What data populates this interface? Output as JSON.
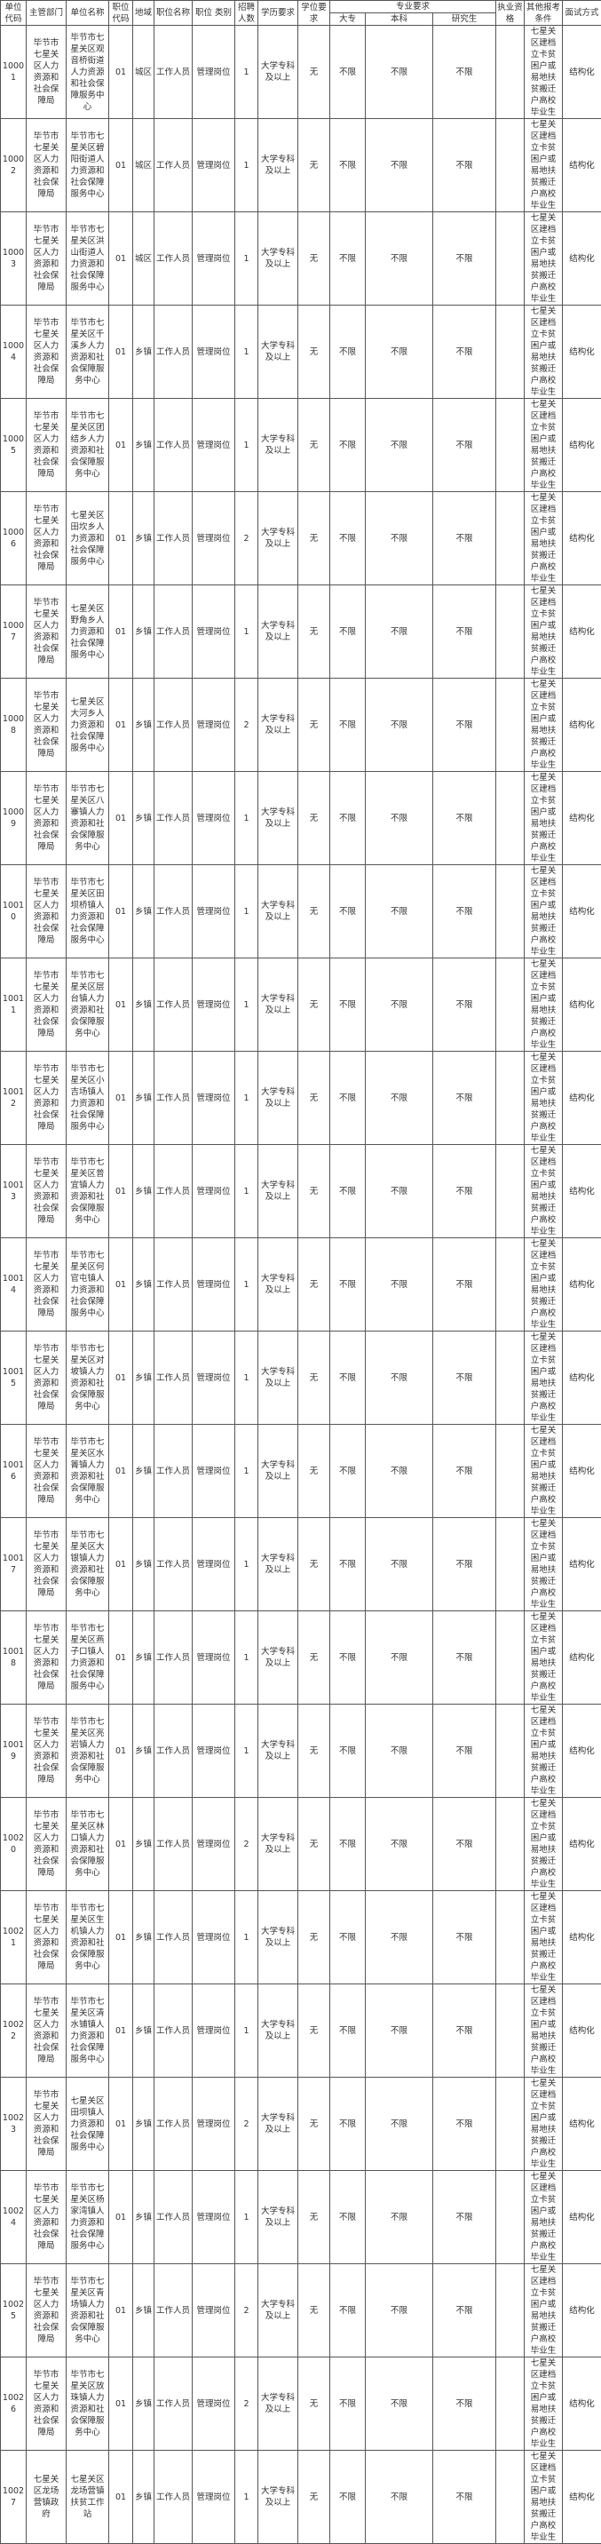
{
  "header": {
    "unit_code": "单位代码",
    "dept": "主管部门",
    "unit_name": "单位名称",
    "post_code": "职位代码",
    "region": "地域",
    "post_name": "职位名称",
    "post_type": "职位 类别",
    "count": "招聘人数",
    "education": "学历要求",
    "degree": "学位要求",
    "major_group": "专业要求",
    "major_junior": "大专",
    "major_bachelor": "本科",
    "major_graduate": "研究生",
    "license": "执业资格",
    "other": "其他报考条件",
    "interview": "面试方式"
  },
  "rows": [
    {
      "code": "10001",
      "dept": "毕节市七星关区人力资源和社会保障局",
      "unit": "毕节市七星关区观音桥街道人力资源和社会保障服务中心",
      "post": "01",
      "region": "城区",
      "name": "工作人员",
      "type": "管理岗位",
      "count": "1",
      "edu": "大学专科及以上",
      "degree": "无",
      "junior": "不限",
      "bachelor": "不限",
      "graduate": "不限",
      "license": "",
      "other": "七星关区建档立卡贫困户或易地扶贫搬迁户高校毕业生",
      "interview": "结构化"
    },
    {
      "code": "10002",
      "dept": "毕节市七星关区人力资源和社会保障局",
      "unit": "毕节市七星关区碧阳街道人力资源和社会保障服务中心",
      "post": "01",
      "region": "城区",
      "name": "工作人员",
      "type": "管理岗位",
      "count": "1",
      "edu": "大学专科及以上",
      "degree": "无",
      "junior": "不限",
      "bachelor": "不限",
      "graduate": "不限",
      "license": "",
      "other": "七星关区建档立卡贫困户或易地扶贫搬迁户高校毕业生",
      "interview": "结构化"
    },
    {
      "code": "10003",
      "dept": "毕节市七星关区人力资源和社会保障局",
      "unit": "毕节市七星关区洪山街道人力资源和社会保障服务中心",
      "post": "01",
      "region": "城区",
      "name": "工作人员",
      "type": "管理岗位",
      "count": "1",
      "edu": "大学专科及以上",
      "degree": "无",
      "junior": "不限",
      "bachelor": "不限",
      "graduate": "不限",
      "license": "",
      "other": "七星关区建档立卡贫困户或易地扶贫搬迁户高校毕业生",
      "interview": "结构化"
    },
    {
      "code": "10004",
      "dept": "毕节市七星关区人力资源和社会保障局",
      "unit": "毕节市七星关区千溪乡人力资源和社会保障服务中心",
      "post": "01",
      "region": "乡镇",
      "name": "工作人员",
      "type": "管理岗位",
      "count": "1",
      "edu": "大学专科及以上",
      "degree": "无",
      "junior": "不限",
      "bachelor": "不限",
      "graduate": "不限",
      "license": "",
      "other": "七星关区建档立卡贫困户或易地扶贫搬迁户高校毕业生",
      "interview": "结构化"
    },
    {
      "code": "10005",
      "dept": "毕节市七星关区人力资源和社会保障局",
      "unit": "毕节市七星关区团结乡人力资源和社会保障服务中心",
      "post": "01",
      "region": "乡镇",
      "name": "工作人员",
      "type": "管理岗位",
      "count": "1",
      "edu": "大学专科及以上",
      "degree": "无",
      "junior": "不限",
      "bachelor": "不限",
      "graduate": "不限",
      "license": "",
      "other": "七星关区建档立卡贫困户或易地扶贫搬迁户高校毕业生",
      "interview": "结构化"
    },
    {
      "code": "10006",
      "dept": "毕节市七星关区人力资源和社会保障局",
      "unit": "七星关区田坎乡人力资源和社会保障服务中心",
      "post": "01",
      "region": "乡镇",
      "name": "工作人员",
      "type": "管理岗位",
      "count": "2",
      "edu": "大学专科及以上",
      "degree": "无",
      "junior": "不限",
      "bachelor": "不限",
      "graduate": "不限",
      "license": "",
      "other": "七星关区建档立卡贫困户或易地扶贫搬迁户高校毕业生",
      "interview": "结构化"
    },
    {
      "code": "10007",
      "dept": "毕节市七星关区人力资源和社会保障局",
      "unit": "七星关区野角乡人力资源和社会保障服务中心",
      "post": "01",
      "region": "乡镇",
      "name": "工作人员",
      "type": "管理岗位",
      "count": "1",
      "edu": "大学专科及以上",
      "degree": "无",
      "junior": "不限",
      "bachelor": "不限",
      "graduate": "不限",
      "license": "",
      "other": "七星关区建档立卡贫困户或易地扶贫搬迁户高校毕业生",
      "interview": "结构化"
    },
    {
      "code": "10008",
      "dept": "毕节市七星关区人力资源和社会保障局",
      "unit": "七星关区大河乡人力资源和社会保障服务中心",
      "post": "01",
      "region": "乡镇",
      "name": "工作人员",
      "type": "管理岗位",
      "count": "2",
      "edu": "大学专科及以上",
      "degree": "无",
      "junior": "不限",
      "bachelor": "不限",
      "graduate": "不限",
      "license": "",
      "other": "七星关区建档立卡贫困户或易地扶贫搬迁户高校毕业生",
      "interview": "结构化"
    },
    {
      "code": "10009",
      "dept": "毕节市七星关区人力资源和社会保障局",
      "unit": "毕节市七星关区八寨镇人力资源和社会保障服务中心",
      "post": "01",
      "region": "乡镇",
      "name": "工作人员",
      "type": "管理岗位",
      "count": "1",
      "edu": "大学专科及以上",
      "degree": "无",
      "junior": "不限",
      "bachelor": "不限",
      "graduate": "不限",
      "license": "",
      "other": "七星关区建档立卡贫困户或易地扶贫搬迁户高校毕业生",
      "interview": "结构化"
    },
    {
      "code": "10010",
      "dept": "毕节市七星关区人力资源和社会保障局",
      "unit": "毕节市七星关区田坝桥镇人力资源和社会保障服务中心",
      "post": "01",
      "region": "乡镇",
      "name": "工作人员",
      "type": "管理岗位",
      "count": "1",
      "edu": "大学专科及以上",
      "degree": "无",
      "junior": "不限",
      "bachelor": "不限",
      "graduate": "不限",
      "license": "",
      "other": "七星关区建档立卡贫困户或易地扶贫搬迁户高校毕业生",
      "interview": "结构化"
    },
    {
      "code": "10011",
      "dept": "毕节市七星关区人力资源和社会保障局",
      "unit": "毕节市七星关区层台镇人力资源和社会保障服务中心",
      "post": "01",
      "region": "乡镇",
      "name": "工作人员",
      "type": "管理岗位",
      "count": "1",
      "edu": "大学专科及以上",
      "degree": "无",
      "junior": "不限",
      "bachelor": "不限",
      "graduate": "不限",
      "license": "",
      "other": "七星关区建档立卡贫困户或易地扶贫搬迁户高校毕业生",
      "interview": "结构化"
    },
    {
      "code": "10012",
      "dept": "毕节市七星关区人力资源和社会保障局",
      "unit": "毕节市七星关区小吉场镇人力资源和社会保障服务中心",
      "post": "01",
      "region": "乡镇",
      "name": "工作人员",
      "type": "管理岗位",
      "count": "1",
      "edu": "大学专科及以上",
      "degree": "无",
      "junior": "不限",
      "bachelor": "不限",
      "graduate": "不限",
      "license": "",
      "other": "七星关区建档立卡贫困户或易地扶贫搬迁户高校毕业生",
      "interview": "结构化"
    },
    {
      "code": "10013",
      "dept": "毕节市七星关区人力资源和社会保障局",
      "unit": "毕节市七星关区普宜镇人力资源和社会保障服务中心",
      "post": "01",
      "region": "乡镇",
      "name": "工作人员",
      "type": "管理岗位",
      "count": "1",
      "edu": "大学专科及以上",
      "degree": "无",
      "junior": "不限",
      "bachelor": "不限",
      "graduate": "不限",
      "license": "",
      "other": "七星关区建档立卡贫困户或易地扶贫搬迁户高校毕业生",
      "interview": "结构化"
    },
    {
      "code": "10014",
      "dept": "毕节市七星关区人力资源和社会保障局",
      "unit": "毕节市七星关区何官屯镇人力资源和社会保障服务中心",
      "post": "01",
      "region": "乡镇",
      "name": "工作人员",
      "type": "管理岗位",
      "count": "1",
      "edu": "大学专科及以上",
      "degree": "无",
      "junior": "不限",
      "bachelor": "不限",
      "graduate": "不限",
      "license": "",
      "other": "七星关区建档立卡贫困户或易地扶贫搬迁户高校毕业生",
      "interview": "结构化"
    },
    {
      "code": "10015",
      "dept": "毕节市七星关区人力资源和社会保障局",
      "unit": "毕节市七星关区对坡镇人力资源和社会保障服务中心",
      "post": "01",
      "region": "乡镇",
      "name": "工作人员",
      "type": "管理岗位",
      "count": "1",
      "edu": "大学专科及以上",
      "degree": "无",
      "junior": "不限",
      "bachelor": "不限",
      "graduate": "不限",
      "license": "",
      "other": "七星关区建档立卡贫困户或易地扶贫搬迁户高校毕业生",
      "interview": "结构化"
    },
    {
      "code": "10016",
      "dept": "毕节市七星关区人力资源和社会保障局",
      "unit": "毕节市七星关区水箐镇人力资源和社会保障服务中心",
      "post": "01",
      "region": "乡镇",
      "name": "工作人员",
      "type": "管理岗位",
      "count": "1",
      "edu": "大学专科及以上",
      "degree": "无",
      "junior": "不限",
      "bachelor": "不限",
      "graduate": "不限",
      "license": "",
      "other": "七星关区建档立卡贫困户或易地扶贫搬迁户高校毕业生",
      "interview": "结构化"
    },
    {
      "code": "10017",
      "dept": "毕节市七星关区人力资源和社会保障局",
      "unit": "毕节市七星关区大银镇人力资源和社会保障服务中心",
      "post": "01",
      "region": "乡镇",
      "name": "工作人员",
      "type": "管理岗位",
      "count": "1",
      "edu": "大学专科及以上",
      "degree": "无",
      "junior": "不限",
      "bachelor": "不限",
      "graduate": "不限",
      "license": "",
      "other": "七星关区建档立卡贫困户或易地扶贫搬迁户高校毕业生",
      "interview": "结构化"
    },
    {
      "code": "10018",
      "dept": "毕节市七星关区人力资源和社会保障局",
      "unit": "毕节市七星关区燕子口镇人力资源和社会保障服务中心",
      "post": "01",
      "region": "乡镇",
      "name": "工作人员",
      "type": "管理岗位",
      "count": "1",
      "edu": "大学专科及以上",
      "degree": "无",
      "junior": "不限",
      "bachelor": "不限",
      "graduate": "不限",
      "license": "",
      "other": "七星关区建档立卡贫困户或易地扶贫搬迁户高校毕业生",
      "interview": "结构化"
    },
    {
      "code": "10019",
      "dept": "毕节市七星关区人力资源和社会保障局",
      "unit": "毕节市七星关区亮岩镇人力资源和社会保障服务中心",
      "post": "01",
      "region": "乡镇",
      "name": "工作人员",
      "type": "管理岗位",
      "count": "1",
      "edu": "大学专科及以上",
      "degree": "无",
      "junior": "不限",
      "bachelor": "不限",
      "graduate": "不限",
      "license": "",
      "other": "七星关区建档立卡贫困户或易地扶贫搬迁户高校毕业生",
      "interview": "结构化"
    },
    {
      "code": "10020",
      "dept": "毕节市七星关区人力资源和社会保障局",
      "unit": "毕节市七星关区林口镇人力资源和社会保障服务中心",
      "post": "01",
      "region": "乡镇",
      "name": "工作人员",
      "type": "管理岗位",
      "count": "2",
      "edu": "大学专科及以上",
      "degree": "无",
      "junior": "不限",
      "bachelor": "不限",
      "graduate": "不限",
      "license": "",
      "other": "七星关区建档立卡贫困户或易地扶贫搬迁户高校毕业生",
      "interview": "结构化"
    },
    {
      "code": "10021",
      "dept": "毕节市七星关区人力资源和社会保障局",
      "unit": "毕节市七星关区生机镇人力资源和社会保障服务中心",
      "post": "01",
      "region": "乡镇",
      "name": "工作人员",
      "type": "管理岗位",
      "count": "1",
      "edu": "大学专科及以上",
      "degree": "无",
      "junior": "不限",
      "bachelor": "不限",
      "graduate": "不限",
      "license": "",
      "other": "七星关区建档立卡贫困户或易地扶贫搬迁户高校毕业生",
      "interview": "结构化"
    },
    {
      "code": "10022",
      "dept": "毕节市七星关区人力资源和社会保障局",
      "unit": "毕节市七星关区清水铺镇人力资源和社会保障服务中心",
      "post": "01",
      "region": "乡镇",
      "name": "工作人员",
      "type": "管理岗位",
      "count": "1",
      "edu": "大学专科及以上",
      "degree": "无",
      "junior": "不限",
      "bachelor": "不限",
      "graduate": "不限",
      "license": "",
      "other": "七星关区建档立卡贫困户或易地扶贫搬迁户高校毕业生",
      "interview": "结构化"
    },
    {
      "code": "10023",
      "dept": "毕节市七星关区人力资源和社会保障局",
      "unit": "七星关区田坝镇人力资源和社会保障服务中心",
      "post": "01",
      "region": "乡镇",
      "name": "工作人员",
      "type": "管理岗位",
      "count": "2",
      "edu": "大学专科及以上",
      "degree": "无",
      "junior": "不限",
      "bachelor": "不限",
      "graduate": "不限",
      "license": "",
      "other": "七星关区建档立卡贫困户或易地扶贫搬迁户高校毕业生",
      "interview": "结构化"
    },
    {
      "code": "10024",
      "dept": "毕节市七星关区人力资源和社会保障局",
      "unit": "毕节市七星关区杨家湾镇人力资源和社会保障服务中心",
      "post": "01",
      "region": "乡镇",
      "name": "工作人员",
      "type": "管理岗位",
      "count": "1",
      "edu": "大学专科及以上",
      "degree": "无",
      "junior": "不限",
      "bachelor": "不限",
      "graduate": "不限",
      "license": "",
      "other": "七星关区建档立卡贫困户或易地扶贫搬迁户高校毕业生",
      "interview": "结构化"
    },
    {
      "code": "10025",
      "dept": "毕节市七星关区人力资源和社会保障局",
      "unit": "毕节市七星关区青场镇人力资源和社会保障服务中心",
      "post": "01",
      "region": "乡镇",
      "name": "工作人员",
      "type": "管理岗位",
      "count": "2",
      "edu": "大学专科及以上",
      "degree": "无",
      "junior": "不限",
      "bachelor": "不限",
      "graduate": "不限",
      "license": "",
      "other": "七星关区建档立卡贫困户或易地扶贫搬迁户高校毕业生",
      "interview": "结构化"
    },
    {
      "code": "10026",
      "dept": "毕节市七星关区人力资源和社会保障局",
      "unit": "毕节市七星关区放珠镇人力资源和社会保障服务中心",
      "post": "01",
      "region": "乡镇",
      "name": "工作人员",
      "type": "管理岗位",
      "count": "2",
      "edu": "大学专科及以上",
      "degree": "无",
      "junior": "不限",
      "bachelor": "不限",
      "graduate": "不限",
      "license": "",
      "other": "七星关区建档立卡贫困户或易地扶贫搬迁户高校毕业生",
      "interview": "结构化"
    },
    {
      "code": "10027",
      "dept": "七星关区龙场营镇政府",
      "unit": "七星关区龙场营镇扶贫工作站",
      "post": "01",
      "region": "乡镇",
      "name": "工作人员",
      "type": "管理岗位",
      "count": "1",
      "edu": "大学专科及以上",
      "degree": "无",
      "junior": "不限",
      "bachelor": "不限",
      "graduate": "不限",
      "license": "",
      "other": "七星关区建档立卡贫困户或易地扶贫搬迁户高校毕业生",
      "interview": "结构化"
    }
  ]
}
